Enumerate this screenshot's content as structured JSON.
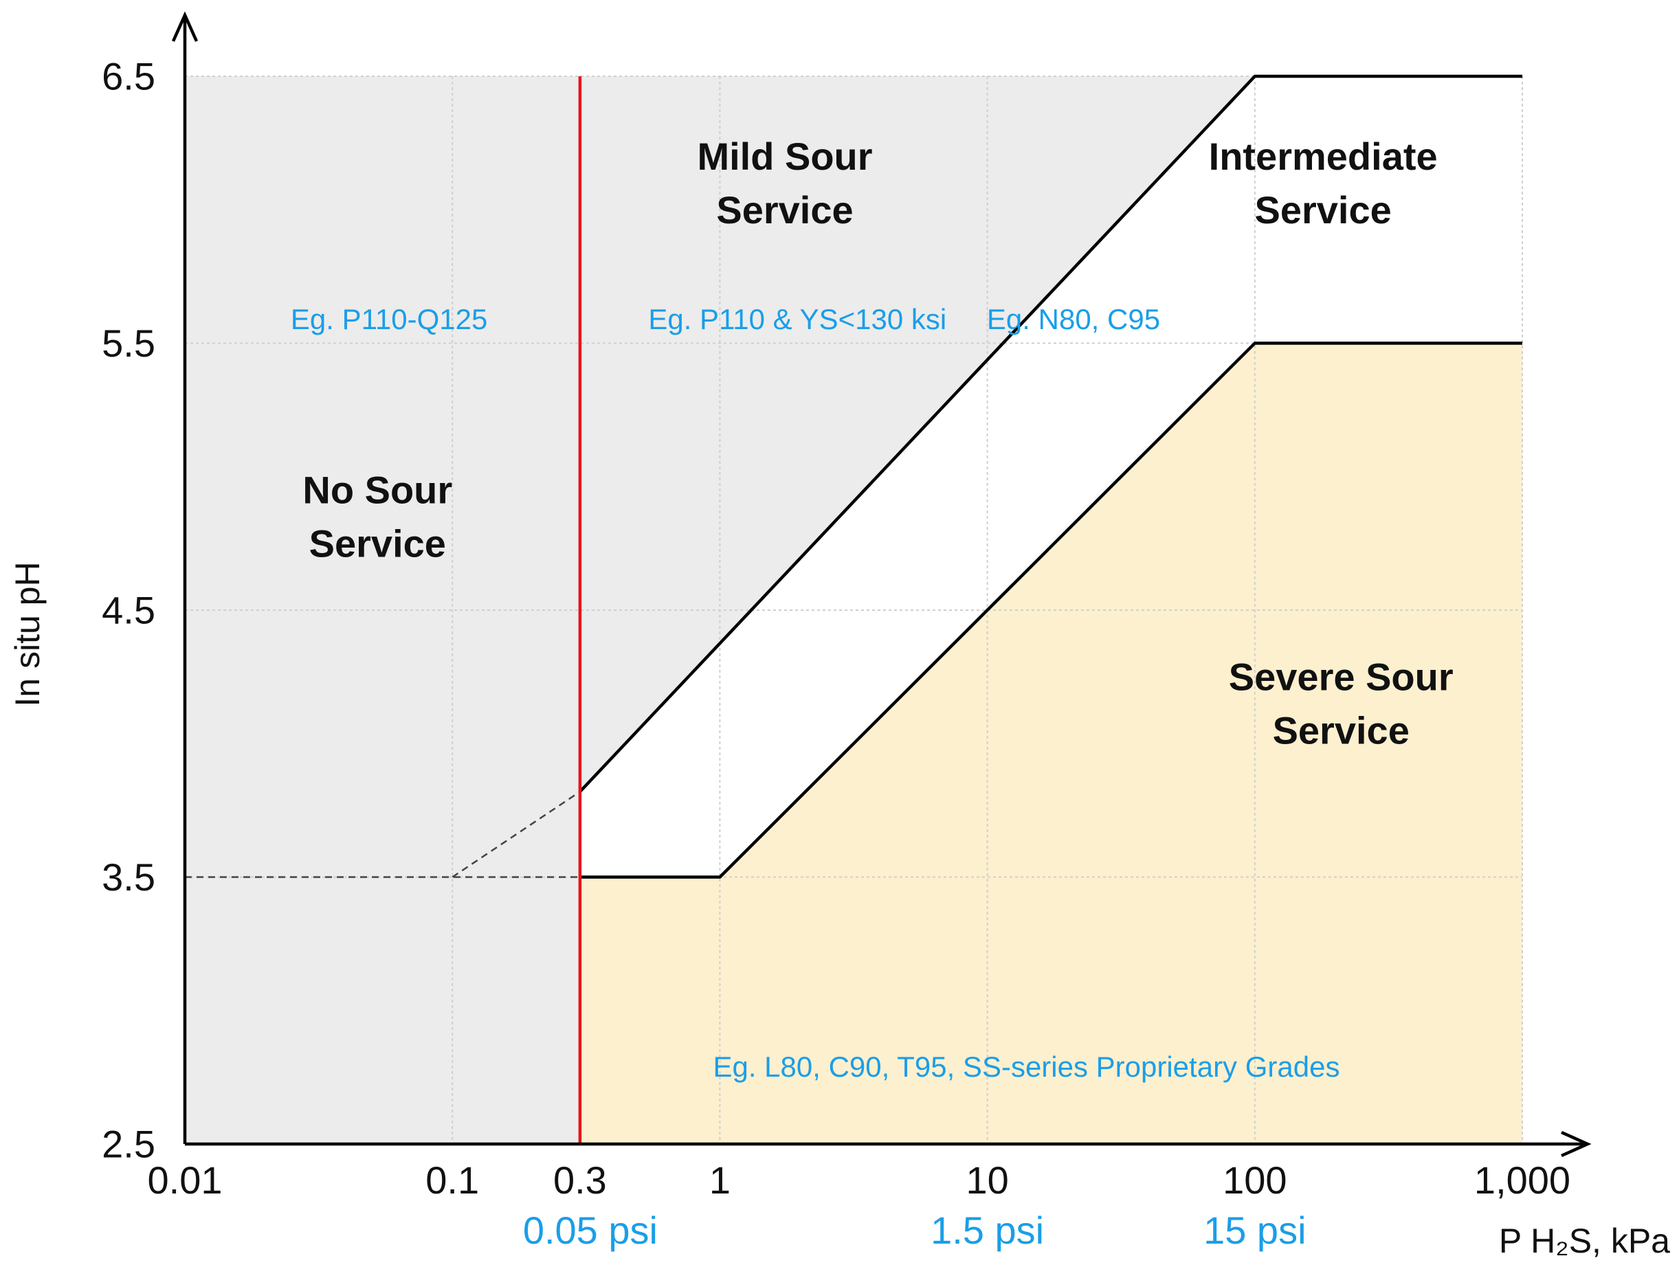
{
  "chart_data": {
    "type": "area",
    "title": "",
    "xlabel": "P H₂S, kPa",
    "ylabel": "In situ pH",
    "x_scale": "log",
    "xlim": [
      0.01,
      1000
    ],
    "ylim": [
      2.5,
      6.5
    ],
    "x_ticks": [
      {
        "value": 0.01,
        "label": "0.01"
      },
      {
        "value": 0.1,
        "label": "0.1"
      },
      {
        "value": 0.3,
        "label": "0.3"
      },
      {
        "value": 1,
        "label": "1"
      },
      {
        "value": 10,
        "label": "10"
      },
      {
        "value": 100,
        "label": "100"
      },
      {
        "value": 1000,
        "label": "1,000"
      }
    ],
    "y_ticks": [
      {
        "value": 2.5,
        "label": "2.5"
      },
      {
        "value": 3.5,
        "label": "3.5"
      },
      {
        "value": 4.5,
        "label": "4.5"
      },
      {
        "value": 5.5,
        "label": "5.5"
      },
      {
        "value": 6.5,
        "label": "6.5"
      }
    ],
    "psi_labels": [
      {
        "x": 0.3,
        "label": "0.05 psi"
      },
      {
        "x": 10,
        "label": "1.5 psi"
      },
      {
        "x": 100,
        "label": "15 psi"
      }
    ],
    "grid": true,
    "boundaries": {
      "mild_upper": [
        [
          0.3,
          3.82
        ],
        [
          100,
          6.5
        ],
        [
          1000,
          6.5
        ]
      ],
      "mild_upper_extension": [
        [
          0.1,
          3.5
        ],
        [
          0.3,
          3.82
        ]
      ],
      "severe_upper": [
        [
          0.3,
          3.5
        ],
        [
          1,
          3.5
        ],
        [
          100,
          5.5
        ],
        [
          1000,
          5.5
        ]
      ],
      "ph35_extension": [
        [
          0.01,
          3.5
        ],
        [
          0.3,
          3.5
        ]
      ],
      "no_sour_limit_x": 0.3
    },
    "regions": [
      {
        "name": "No Sour Service",
        "lines": [
          "No Sour",
          "Service"
        ],
        "color": "#ececec"
      },
      {
        "name": "Mild Sour Service",
        "lines": [
          "Mild Sour",
          "Service"
        ],
        "color": "#ececec"
      },
      {
        "name": "Intermediate Service",
        "lines": [
          "Intermediate",
          "Service"
        ],
        "color": "#ffffff"
      },
      {
        "name": "Severe Sour Service",
        "lines": [
          "Severe Sour",
          "Service"
        ],
        "color": "#fdf0cf"
      }
    ],
    "examples": [
      {
        "region": "No Sour Service",
        "text": "Eg. P110-Q125"
      },
      {
        "region": "Mild Sour Service",
        "text": "Eg. P110 & YS<130 ksi"
      },
      {
        "region": "Intermediate Service",
        "text": "Eg. N80, C95"
      },
      {
        "region": "Severe Sour Service",
        "text": "Eg. L80, C90, T95, SS-series Proprietary Grades"
      }
    ],
    "colors": {
      "no_sour_line": "#e8141a",
      "psi_text": "#1a9ee8",
      "example_text": "#1a9ee8"
    }
  }
}
